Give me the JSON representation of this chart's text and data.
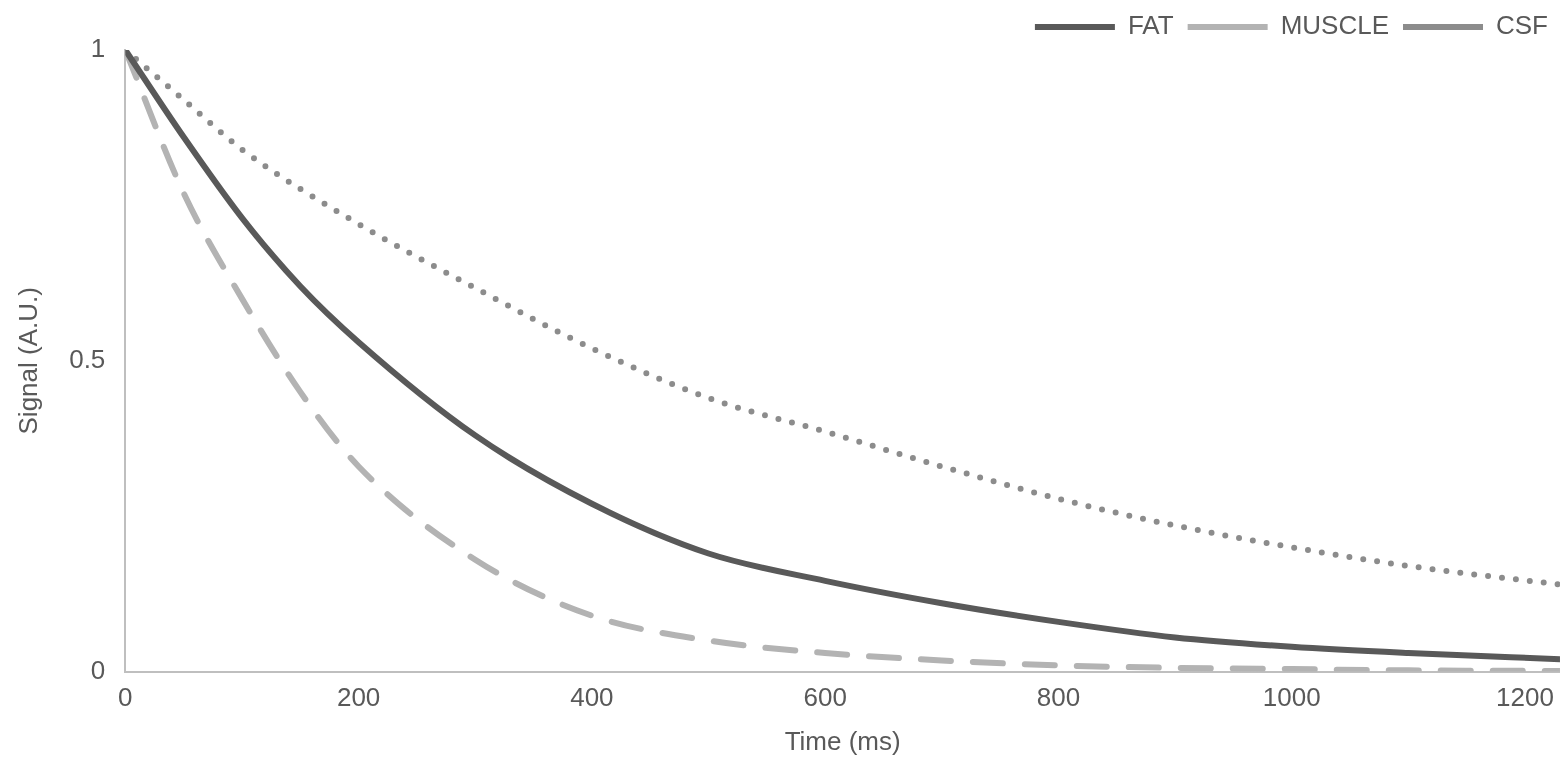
{
  "chart_data": {
    "type": "line",
    "xlabel": "Time (ms)",
    "ylabel": "Signal (A.U.)",
    "xlim": [
      0,
      1230
    ],
    "xticks": [
      0,
      200,
      400,
      600,
      800,
      1000,
      1200
    ],
    "ylim": [
      0,
      1
    ],
    "yticks": [
      0,
      0.5,
      1
    ],
    "grid": false,
    "legend": "top right",
    "marker": "none",
    "series": [
      {
        "name": "FAT",
        "color": "#595959",
        "line_style": "solid",
        "x": [
          0,
          50,
          100,
          150,
          200,
          300,
          400,
          500,
          600,
          700,
          800,
          900,
          1000,
          1100,
          1230
        ],
        "values": [
          1,
          0.86,
          0.73,
          0.62,
          0.53,
          0.38,
          0.27,
          0.19,
          0.146,
          0.11,
          0.08,
          0.055,
          0.04,
          0.03,
          0.02
        ]
      },
      {
        "name": "MUSCLE",
        "color": "#b3b3b3",
        "line_style": "dashed",
        "x": [
          0,
          50,
          100,
          150,
          200,
          300,
          400,
          500,
          600,
          700,
          800,
          900,
          1000,
          1100,
          1230
        ],
        "values": [
          1,
          0.77,
          0.6,
          0.45,
          0.33,
          0.18,
          0.09,
          0.05,
          0.03,
          0.018,
          0.01,
          0.006,
          0.004,
          0.002,
          0.001
        ]
      },
      {
        "name": "CSF",
        "color": "#8c8c8c",
        "line_style": "dotted",
        "x": [
          0,
          50,
          100,
          200,
          300,
          400,
          500,
          600,
          700,
          800,
          900,
          1000,
          1100,
          1230
        ],
        "values": [
          1,
          0.92,
          0.84,
          0.72,
          0.617,
          0.52,
          0.44,
          0.386,
          0.33,
          0.278,
          0.235,
          0.2,
          0.17,
          0.14
        ]
      }
    ]
  }
}
